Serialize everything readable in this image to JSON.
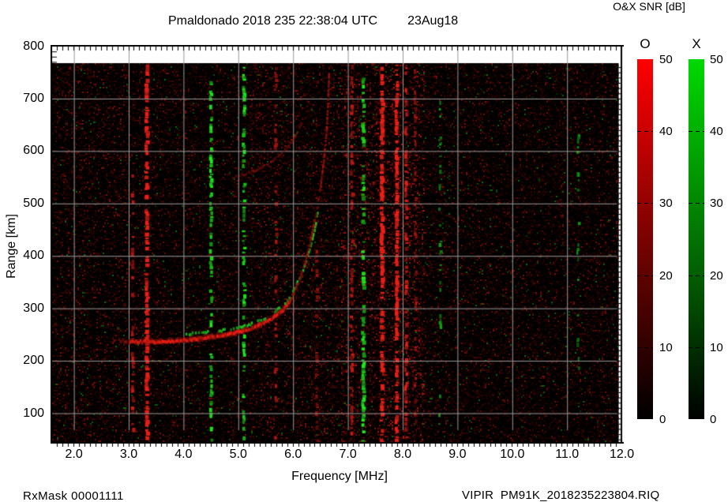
{
  "header": {
    "title": "Pmaldonado 2018 235 22:38:04 UTC",
    "date": "23Aug18",
    "colorbar_title": "O&X SNR [dB]"
  },
  "footer": {
    "rx_mask": "RxMask 00001111",
    "file": "VIPIR  PM91K_2018235223804.RIQ"
  },
  "axes": {
    "x_label": "Frequency [MHz]",
    "y_label": "Range [km]",
    "x_tick_labels": [
      "2.0",
      "3.0",
      "4.0",
      "5.0",
      "6.0",
      "7.0",
      "8.0",
      "9.0",
      "10.0",
      "11.0",
      "12.0"
    ],
    "x_tick_values": [
      2,
      3,
      4,
      5,
      6,
      7,
      8,
      9,
      10,
      11,
      12
    ],
    "y_tick_labels": [
      "800",
      "700",
      "600",
      "500",
      "400",
      "300",
      "200",
      "100"
    ],
    "y_tick_values": [
      800,
      700,
      600,
      500,
      400,
      300,
      200,
      100
    ]
  },
  "colorbars": {
    "o": {
      "label": "O",
      "ticks": [
        "50",
        "40",
        "30",
        "20",
        "10",
        "0"
      ],
      "top_color": "#ff0000",
      "bottom_color": "#000000"
    },
    "x": {
      "label": "X",
      "ticks": [
        "50",
        "40",
        "30",
        "20",
        "10",
        "0"
      ],
      "top_color": "#00d900",
      "bottom_color": "#000000"
    }
  },
  "chart_data": {
    "type": "heatmap",
    "title": "Pmaldonado 2018 235 22:38:04 UTC",
    "station": "Pmaldonado",
    "date": "23Aug18",
    "xlabel": "Frequency [MHz]",
    "ylabel": "Range [km]",
    "xlim": [
      1.59,
      12.0
    ],
    "ylim": [
      44,
      800
    ],
    "data_top_km": 767,
    "grid": true,
    "grid_color": "#999999",
    "background": "#000000",
    "snr_scale": {
      "label": "O&X SNR [dB]",
      "min": 0,
      "max": 50,
      "ticks": [
        0,
        10,
        20,
        30,
        40,
        50
      ],
      "o_color": "#ff0000",
      "x_color": "#00d900"
    },
    "traces": {
      "O_lead": [
        [
          2.72,
          240
        ],
        [
          2.85,
          238.5
        ],
        [
          3.0,
          237
        ]
      ],
      "O_main": [
        [
          3.0,
          237
        ],
        [
          3.2,
          236.2
        ],
        [
          3.4,
          236
        ],
        [
          3.6,
          236.5
        ],
        [
          3.85,
          238
        ],
        [
          4.1,
          240.5
        ],
        [
          4.35,
          243.5
        ],
        [
          4.6,
          247.5
        ],
        [
          4.85,
          252
        ],
        [
          5.1,
          258
        ],
        [
          5.35,
          267
        ],
        [
          5.6,
          281
        ],
        [
          5.8,
          297
        ],
        [
          5.95,
          318
        ]
      ],
      "O_cusp": [
        [
          5.95,
          318
        ],
        [
          6.08,
          348
        ],
        [
          6.2,
          385
        ],
        [
          6.3,
          428
        ],
        [
          6.4,
          478
        ],
        [
          6.48,
          528
        ],
        [
          6.54,
          578
        ],
        [
          6.59,
          632
        ],
        [
          6.62,
          690
        ],
        [
          6.64,
          750
        ]
      ],
      "X_main": [
        [
          3.92,
          251
        ],
        [
          4.15,
          252
        ],
        [
          4.4,
          254
        ],
        [
          4.65,
          257
        ],
        [
          4.9,
          261
        ],
        [
          5.15,
          267
        ],
        [
          5.4,
          277
        ],
        [
          5.65,
          292
        ],
        [
          5.85,
          312
        ],
        [
          6.0,
          335
        ],
        [
          6.15,
          368
        ],
        [
          6.28,
          408
        ],
        [
          6.38,
          450
        ],
        [
          6.45,
          490
        ]
      ],
      "second_hop": [
        [
          4.85,
          548
        ],
        [
          5.1,
          556
        ],
        [
          5.35,
          566
        ],
        [
          5.6,
          580
        ],
        [
          5.82,
          600
        ],
        [
          6.0,
          624
        ],
        [
          6.15,
          652
        ]
      ]
    },
    "rfi_columns": {
      "red": [
        {
          "f": 3.07,
          "halfw": 1.5,
          "density": 0.4,
          "bright": 1.4,
          "km0": 60,
          "km1": 560
        },
        {
          "f": 3.33,
          "halfw": 2.0,
          "density": 0.65,
          "bright": 2.1,
          "km0": 45,
          "km1": 765
        },
        {
          "f": 5.68,
          "halfw": 1.5,
          "density": 0.3,
          "bright": 1.2,
          "km0": 45,
          "km1": 765
        },
        {
          "f": 6.43,
          "halfw": 1.5,
          "density": 0.25,
          "bright": 1.1,
          "km0": 45,
          "km1": 420
        },
        {
          "f": 7.07,
          "halfw": 1.5,
          "density": 0.35,
          "bright": 1.4,
          "km0": 45,
          "km1": 765
        },
        {
          "f": 7.62,
          "halfw": 2.0,
          "density": 0.7,
          "bright": 2.4,
          "km0": 45,
          "km1": 765
        },
        {
          "f": 7.89,
          "halfw": 1.8,
          "density": 0.65,
          "bright": 2.4,
          "km0": 45,
          "km1": 765
        },
        {
          "f": 8.06,
          "halfw": 1.5,
          "density": 0.45,
          "bright": 1.6,
          "km0": 45,
          "km1": 765
        },
        {
          "f": 8.23,
          "halfw": 1.2,
          "density": 0.25,
          "bright": 1.2,
          "km0": 45,
          "km1": 765
        }
      ],
      "green": [
        {
          "f": 4.5,
          "halfw": 1.5,
          "density": 0.45,
          "bright": 1.7,
          "km0": 45,
          "km1": 765
        },
        {
          "f": 5.1,
          "halfw": 1.5,
          "density": 0.45,
          "bright": 1.7,
          "km0": 45,
          "km1": 765
        },
        {
          "f": 7.28,
          "halfw": 1.8,
          "density": 0.45,
          "bright": 1.7,
          "km0": 45,
          "km1": 740
        },
        {
          "f": 8.68,
          "halfw": 1.2,
          "density": 0.2,
          "bright": 1.1,
          "km0": 80,
          "km1": 700
        },
        {
          "f": 11.2,
          "halfw": 1.2,
          "density": 0.15,
          "bright": 1.0,
          "km0": 100,
          "km1": 650
        }
      ]
    },
    "noise": {
      "seed": 1234567,
      "red_density": 0.42,
      "red_bright_density": 0.045,
      "green_density": 0.013,
      "hot_band_mhz": [
        6.85,
        8.4
      ],
      "warm_band_mhz": [
        5.2,
        6.85
      ]
    }
  }
}
